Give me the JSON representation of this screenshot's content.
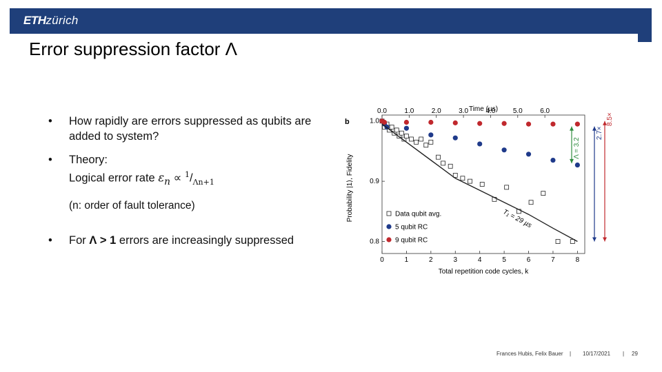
{
  "header": {
    "logo_bold": "ETH",
    "logo_rest": "zürich",
    "color": "#1f3f7a"
  },
  "slide": {
    "title": "Error suppression factor Λ"
  },
  "bullets": [
    {
      "text": "How rapidly are errors suppressed as qubits are added to system?"
    },
    {
      "line1": "Theory:",
      "line2_prefix": "Logical error rate ",
      "symbol": "ε",
      "sub": "n",
      "prop": " ∝ ",
      "num": "1",
      "slash": "/",
      "den": "Λn+1"
    },
    {
      "note": "(n: order of fault tolerance)"
    },
    {
      "prefix": "For ",
      "bold": "Λ > 1",
      "suffix": " errors are increasingly suppressed"
    }
  ],
  "footer": {
    "authors": "Frances Hubis, Felix Bauer",
    "sep": "|",
    "date": "10/17/2021",
    "page": "29"
  },
  "chart_data": {
    "type": "scatter",
    "panel_label": "b",
    "xlabel": "Total repetition code cycles, k",
    "ylabel": "Probability |1⟩, Fidelity",
    "x2label": "Time (µs)",
    "xlim": [
      0,
      8.3
    ],
    "ylim": [
      0.78,
      1.01
    ],
    "xticks": [
      0,
      1,
      2,
      3,
      4,
      5,
      6,
      7,
      8
    ],
    "yticks": [
      0.8,
      0.9,
      1.0
    ],
    "ytick_labels": [
      "0.8",
      "0.9",
      "1.0"
    ],
    "x2ticks": [
      0,
      1,
      2,
      3,
      4,
      5,
      6
    ],
    "x2tick_labels": [
      "0.0",
      "1.0",
      "2.0",
      "3.0",
      "4.0",
      "5.0",
      "6.0"
    ],
    "x2_per_k": 0.9,
    "series": [
      {
        "name": "Data qubit avg.",
        "marker": "square-open",
        "color": "#222222",
        "x": [
          0,
          0.1,
          0.2,
          0.3,
          0.4,
          0.5,
          0.6,
          0.7,
          0.8,
          0.9,
          1.0,
          1.2,
          1.4,
          1.6,
          1.8,
          2.0,
          2.3,
          2.5,
          2.8,
          3.0,
          3.3,
          3.6,
          4.1,
          4.6,
          5.1,
          5.6,
          6.1,
          6.6,
          7.2,
          7.8
        ],
        "y": [
          1.0,
          0.99,
          0.995,
          0.985,
          0.99,
          0.98,
          0.985,
          0.975,
          0.98,
          0.97,
          0.975,
          0.97,
          0.965,
          0.97,
          0.96,
          0.965,
          0.94,
          0.93,
          0.925,
          0.91,
          0.905,
          0.9,
          0.895,
          0.87,
          0.89,
          0.85,
          0.865,
          0.88,
          0.8,
          0.8
        ]
      },
      {
        "name": "5 qubit RC",
        "marker": "circle",
        "color": "#1f3a8a",
        "x": [
          0,
          0.1,
          0.2,
          1.0,
          2.0,
          3.0,
          4.0,
          5.0,
          6.0,
          7.0,
          8.0
        ],
        "y": [
          1.0,
          0.995,
          0.99,
          0.988,
          0.977,
          0.972,
          0.962,
          0.952,
          0.945,
          0.935,
          0.927
        ]
      },
      {
        "name": "9 qubit RC",
        "marker": "circle",
        "color": "#c0282d",
        "x": [
          0,
          0.1,
          1.0,
          2.0,
          3.0,
          4.0,
          5.0,
          6.0,
          7.0,
          8.0
        ],
        "y": [
          1.0,
          0.998,
          0.998,
          0.998,
          0.997,
          0.996,
          0.996,
          0.995,
          0.995,
          0.995
        ]
      },
      {
        "name": "T1 fit",
        "marker": "line",
        "color": "#222222",
        "x": [
          0,
          1,
          2,
          3,
          4,
          5,
          6,
          7,
          8
        ],
        "y": [
          0.995,
          0.965,
          0.935,
          0.905,
          0.885,
          0.865,
          0.845,
          0.822,
          0.8
        ]
      }
    ],
    "legend": [
      "Data qubit avg.",
      "5 qubit RC",
      "9 qubit RC"
    ],
    "legend_position": "bottom-left",
    "annotations": {
      "t1": "T₁ = 29 µs",
      "lambda": "Λ = 3.2",
      "five_x": "2.7×",
      "nine_x": "8.5×",
      "green": "#2e8b3e",
      "blue": "#1f3a8a",
      "red": "#c0282d"
    }
  }
}
